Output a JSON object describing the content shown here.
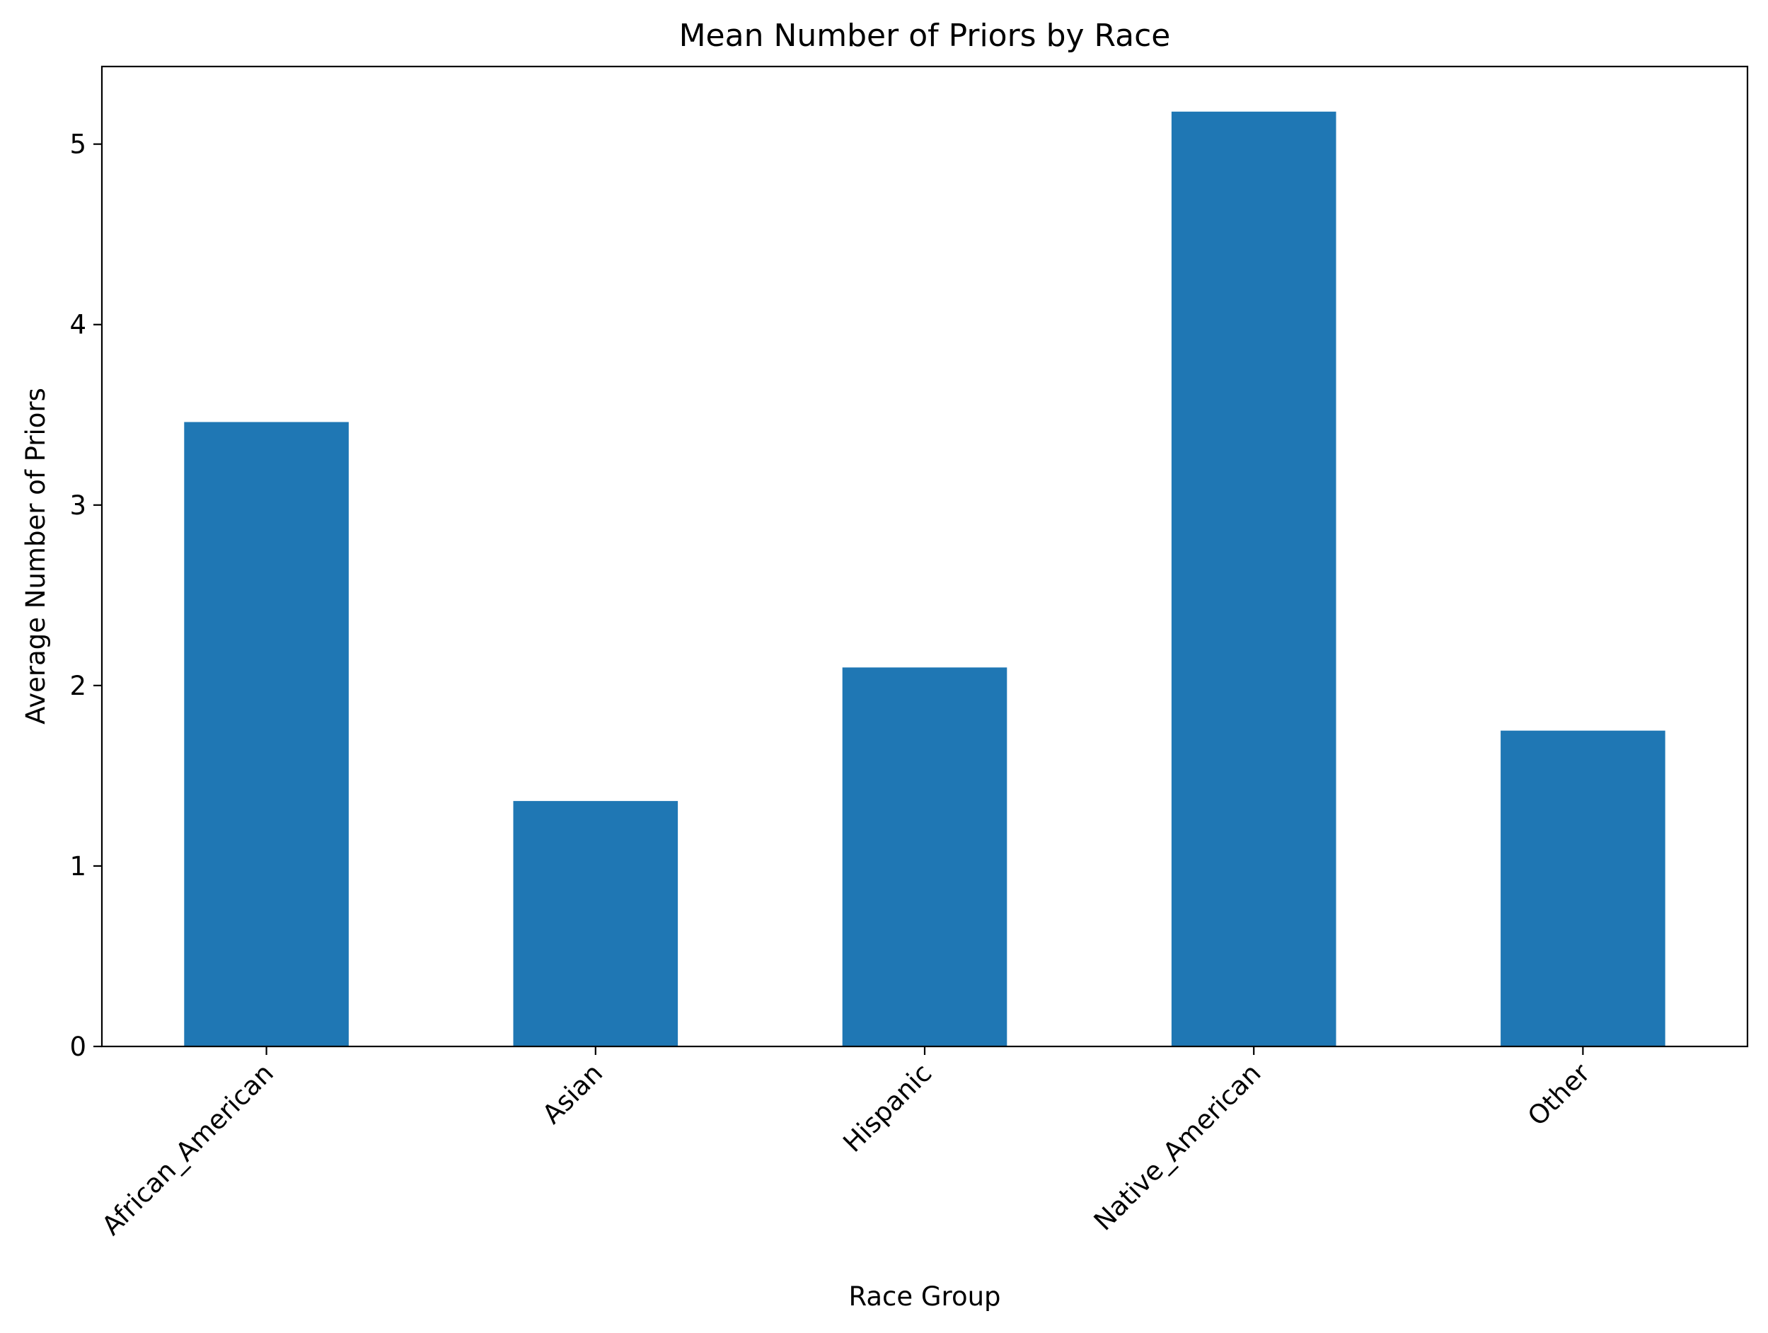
{
  "chart_data": {
    "type": "bar",
    "title": "Mean Number of Priors by Race",
    "xlabel": "Race Group",
    "ylabel": "Average Number of Priors",
    "categories": [
      "African_American",
      "Asian",
      "Hispanic",
      "Native_American",
      "Other"
    ],
    "values": [
      3.46,
      1.36,
      2.1,
      5.18,
      1.75
    ],
    "ylim": [
      0,
      5.43
    ],
    "yticks": [
      0,
      1,
      2,
      3,
      4,
      5
    ],
    "grid": false,
    "legend": "none",
    "bar_color": "#1f77b4"
  }
}
